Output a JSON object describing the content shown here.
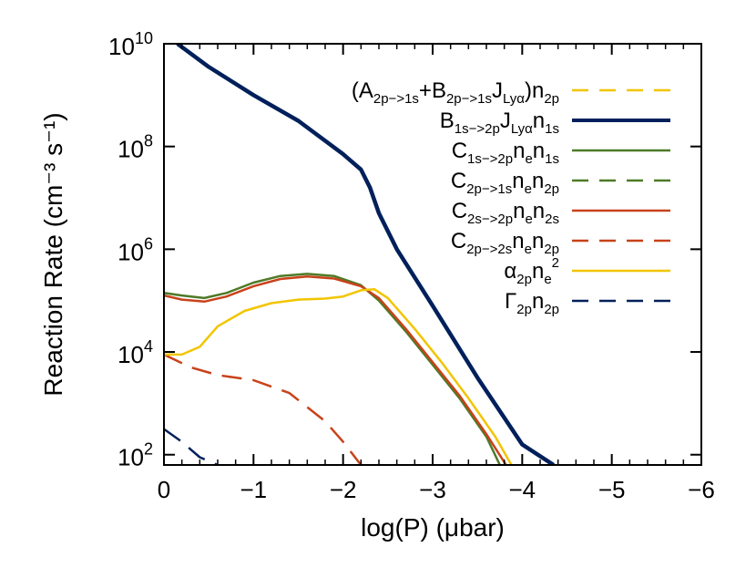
{
  "chart_data": {
    "type": "line",
    "xlabel": "log(P) (μbar)",
    "ylabel": "Reaction Rate (cm⁻³ s⁻¹)",
    "xlim": [
      0,
      -6
    ],
    "ylim_log10": [
      1.8,
      10
    ],
    "yscale": "log",
    "x_ticks": [
      {
        "value": 0,
        "label": "0"
      },
      {
        "value": -1,
        "label": "−1"
      },
      {
        "value": -2,
        "label": "−2"
      },
      {
        "value": -3,
        "label": "−3"
      },
      {
        "value": -4,
        "label": "−4"
      },
      {
        "value": -5,
        "label": "−5"
      },
      {
        "value": -6,
        "label": "−6"
      }
    ],
    "y_ticks": [
      {
        "exp": 2,
        "base": "10",
        "power": "2"
      },
      {
        "exp": 4,
        "base": "10",
        "power": "4"
      },
      {
        "exp": 6,
        "base": "10",
        "power": "6"
      },
      {
        "exp": 8,
        "base": "10",
        "power": "8"
      },
      {
        "exp": 10,
        "base": "10",
        "power": "10"
      }
    ],
    "grid": false,
    "legend_position": "top-right",
    "series": [
      {
        "name": "(A2p->1s+B2p->1sJLyα)n2p",
        "label_parts": [
          [
            "(A",
            ""
          ],
          [
            "2p−>1s",
            "sub"
          ],
          [
            "+B",
            ""
          ],
          [
            "2p−>1s",
            "sub"
          ],
          [
            "J",
            ""
          ],
          [
            "Lyα",
            "sub"
          ],
          [
            ")n",
            ""
          ],
          [
            "2p",
            "sub"
          ]
        ],
        "color": "#F2C500",
        "dash": "dashed",
        "width": 3,
        "x": [
          -0.15,
          -0.5,
          -1.0,
          -1.5,
          -2.0,
          -2.2,
          -2.3,
          -2.4,
          -2.6,
          -3.0,
          -3.5,
          -4.0,
          -4.35
        ],
        "y_log10": [
          10.0,
          9.55,
          9.0,
          8.5,
          7.85,
          7.55,
          7.2,
          6.7,
          6.0,
          4.9,
          3.5,
          2.2,
          1.8
        ]
      },
      {
        "name": "B1s->2pJLyαn1s",
        "label_parts": [
          [
            "B",
            ""
          ],
          [
            "1s−>2p",
            "sub"
          ],
          [
            "J",
            ""
          ],
          [
            "Lyα",
            "sub"
          ],
          [
            "n",
            ""
          ],
          [
            "1s",
            "sub"
          ]
        ],
        "color": "#00205B",
        "dash": "solid",
        "width": 4.5,
        "x": [
          -0.15,
          -0.5,
          -1.0,
          -1.5,
          -2.0,
          -2.2,
          -2.3,
          -2.4,
          -2.6,
          -3.0,
          -3.5,
          -4.0,
          -4.35
        ],
        "y_log10": [
          10.0,
          9.55,
          9.0,
          8.5,
          7.85,
          7.55,
          7.2,
          6.7,
          6.0,
          4.9,
          3.5,
          2.2,
          1.8
        ]
      },
      {
        "name": "C1s->2pnen1s",
        "label_parts": [
          [
            "C",
            ""
          ],
          [
            "1s−>2p",
            "sub"
          ],
          [
            "n",
            ""
          ],
          [
            "e",
            "sub"
          ],
          [
            "n",
            ""
          ],
          [
            "1s",
            "sub"
          ]
        ],
        "color": "#4E7A27",
        "dash": "solid",
        "width": 2.5,
        "x": [
          0,
          -0.2,
          -0.45,
          -0.7,
          -1.0,
          -1.3,
          -1.6,
          -1.9,
          -2.2,
          -2.4,
          -2.7,
          -3.0,
          -3.3,
          -3.6,
          -3.75
        ],
        "y_log10": [
          5.15,
          5.1,
          5.05,
          5.15,
          5.35,
          5.48,
          5.52,
          5.48,
          5.3,
          5.0,
          4.4,
          3.75,
          3.1,
          2.35,
          1.8
        ]
      },
      {
        "name": "C2p->1snen2p",
        "label_parts": [
          [
            "C",
            ""
          ],
          [
            "2p−>1s",
            "sub"
          ],
          [
            "n",
            ""
          ],
          [
            "e",
            "sub"
          ],
          [
            "n",
            ""
          ],
          [
            "2p",
            "sub"
          ]
        ],
        "color": "#4E7A27",
        "dash": "dashed",
        "width": 2.5,
        "x": [],
        "y_log10": []
      },
      {
        "name": "C2s->2pnen2s",
        "label_parts": [
          [
            "C",
            ""
          ],
          [
            "2s−>2p",
            "sub"
          ],
          [
            "n",
            ""
          ],
          [
            "e",
            "sub"
          ],
          [
            "n",
            ""
          ],
          [
            "2s",
            "sub"
          ]
        ],
        "color": "#C8421A",
        "dash": "solid",
        "width": 2.5,
        "x": [
          0,
          -0.2,
          -0.45,
          -0.7,
          -1.0,
          -1.3,
          -1.6,
          -1.9,
          -2.2,
          -2.4,
          -2.7,
          -3.0,
          -3.3,
          -3.6,
          -3.82
        ],
        "y_log10": [
          5.1,
          5.02,
          4.98,
          5.08,
          5.28,
          5.42,
          5.47,
          5.43,
          5.28,
          5.05,
          4.45,
          3.8,
          3.15,
          2.4,
          1.8
        ]
      },
      {
        "name": "C2p->2snen2p",
        "label_parts": [
          [
            "C",
            ""
          ],
          [
            "2p−>2s",
            "sub"
          ],
          [
            "n",
            ""
          ],
          [
            "e",
            "sub"
          ],
          [
            "n",
            ""
          ],
          [
            "2p",
            "sub"
          ]
        ],
        "color": "#C8421A",
        "dash": "dashed",
        "width": 2.5,
        "x": [
          0,
          -0.3,
          -0.6,
          -1.0,
          -1.4,
          -1.8,
          -2.0,
          -2.2
        ],
        "y_log10": [
          3.95,
          3.7,
          3.55,
          3.45,
          3.2,
          2.65,
          2.25,
          1.8
        ]
      },
      {
        "name": "α2pne2",
        "label_parts": [
          [
            "α",
            ""
          ],
          [
            "2p",
            "sub"
          ],
          [
            "n",
            ""
          ],
          [
            "e",
            "sub"
          ],
          [
            "2",
            "sup"
          ]
        ],
        "color": "#F2C500",
        "dash": "solid",
        "width": 2.5,
        "x": [
          0,
          -0.2,
          -0.4,
          -0.6,
          -0.9,
          -1.2,
          -1.5,
          -1.8,
          -2.0,
          -2.2,
          -2.35,
          -2.5,
          -2.8,
          -3.1,
          -3.4,
          -3.7,
          -3.88
        ],
        "y_log10": [
          3.95,
          3.95,
          4.1,
          4.5,
          4.8,
          4.95,
          5.02,
          5.04,
          5.08,
          5.2,
          5.22,
          5.05,
          4.45,
          3.8,
          3.1,
          2.35,
          1.8
        ]
      },
      {
        "name": "Γ2pn2p",
        "label_parts": [
          [
            "Γ",
            ""
          ],
          [
            "2p",
            "sub"
          ],
          [
            "n",
            ""
          ],
          [
            "2p",
            "sub"
          ]
        ],
        "color": "#00205B",
        "dash": "dashed",
        "width": 2.5,
        "x": [
          0,
          -0.2,
          -0.4,
          -0.6
        ],
        "y_log10": [
          2.5,
          2.25,
          1.95,
          1.8
        ]
      }
    ]
  }
}
